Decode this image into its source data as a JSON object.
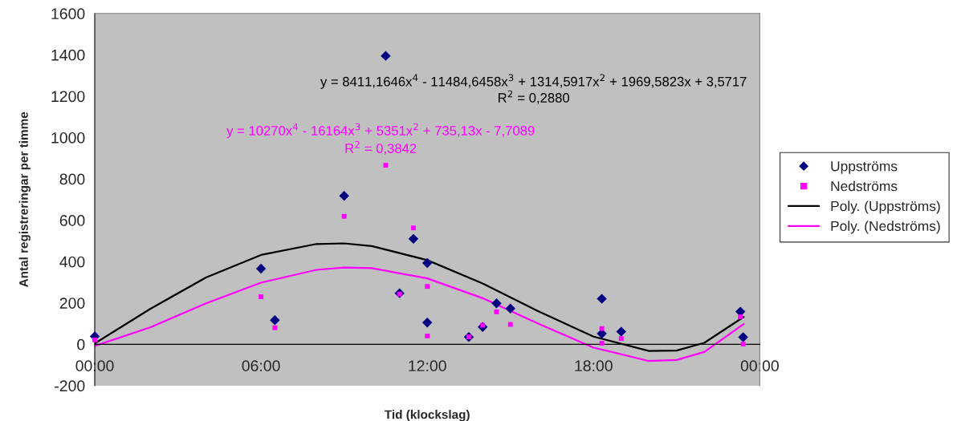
{
  "chart_data": {
    "type": "scatter",
    "xlabel": "Tid (klockslag)",
    "ylabel": "Antal registreringar per timme",
    "xlim": [
      0,
      24
    ],
    "xticks": [
      {
        "value": 0,
        "label": "00:00"
      },
      {
        "value": 6,
        "label": "06:00"
      },
      {
        "value": 12,
        "label": "12:00"
      },
      {
        "value": 18,
        "label": "18:00"
      },
      {
        "value": 24,
        "label": "00:00"
      }
    ],
    "ylim": [
      -200,
      1600
    ],
    "yticks": [
      -200,
      0,
      200,
      400,
      600,
      800,
      1000,
      1200,
      1400,
      1600
    ],
    "legend": "right",
    "series": [
      {
        "name": "Uppströms",
        "marker": "diamond",
        "color": "#000080",
        "x": [
          0,
          6,
          6.5,
          9,
          10.5,
          11,
          11.5,
          12,
          12,
          13.5,
          14,
          14.5,
          15,
          18.3,
          18.3,
          19,
          23.3,
          23.4
        ],
        "values": [
          38,
          366,
          117,
          718,
          1395,
          247,
          510,
          393,
          105,
          35,
          84,
          198,
          173,
          220,
          52,
          61,
          158,
          34
        ]
      },
      {
        "name": "Nedströms",
        "marker": "square",
        "color": "#ff00ff",
        "x": [
          0,
          6,
          6.5,
          9,
          10.5,
          11,
          11.5,
          12,
          12,
          13.5,
          14,
          14.5,
          15,
          18.3,
          18.3,
          19,
          23.3,
          23.4
        ],
        "values": [
          21,
          230,
          80,
          619,
          866,
          243,
          563,
          280,
          40,
          36,
          92,
          157,
          96,
          76,
          5,
          28,
          133,
          1
        ]
      },
      {
        "name": "Poly. (Uppströms)",
        "type": "line",
        "marker": "none",
        "line_style": "solid",
        "color": "#000000",
        "x": [
          0,
          2,
          4,
          6,
          8,
          9,
          10,
          12,
          14,
          16,
          18,
          20,
          21,
          22,
          23.42
        ],
        "values": [
          4,
          171,
          322,
          432,
          485,
          488,
          475,
          407,
          294,
          160,
          37,
          -32,
          -30,
          7,
          132
        ]
      },
      {
        "name": "Poly. (Nedströms)",
        "type": "line",
        "marker": "none",
        "line_style": "solid",
        "color": "#ff00ff",
        "x": [
          0,
          2,
          4,
          6,
          8,
          9,
          10,
          12,
          14,
          16,
          18,
          20,
          21,
          22,
          23.42
        ],
        "values": [
          -8,
          82,
          197,
          298,
          360,
          371,
          368,
          319,
          223,
          100,
          -16,
          -81,
          -76,
          -37,
          98
        ]
      }
    ],
    "annotations": [
      "y = 8411,1646x$^{4}$ - 11484,6458x$^{3}$ + 1314,5917x$^{2}$ + 1969,5823x + 3,5717",
      "R$^{2}$ = 0,2880",
      "y = 10270x$^{4}$ - 16164x$^{3}$ + 5351x$^{2}$ + 735,13x - 7,7089",
      "R$^{2}$ = 0,3842"
    ]
  }
}
